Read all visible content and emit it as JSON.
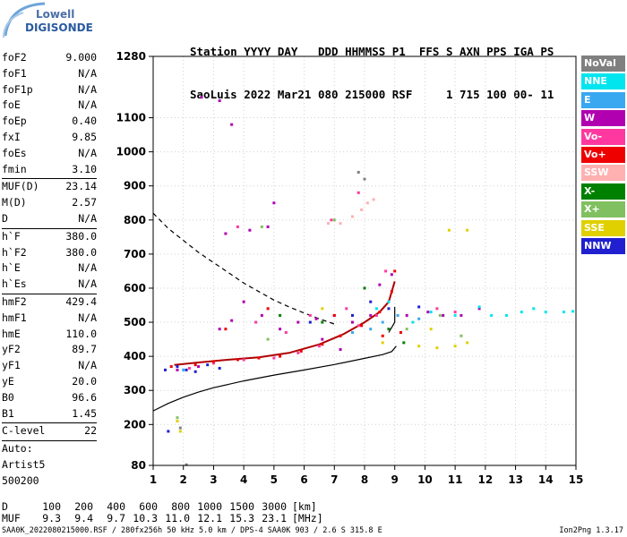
{
  "logo": {
    "line1": "Lowell",
    "line2": "DIGISONDE"
  },
  "header": {
    "line1": "Station YYYY DAY   DDD HHMMSS P1  FFS S AXN PPS IGA PS",
    "line2": "SaoLuis 2022 Mar21 080 215000 RSF     1 715 100 00- 11"
  },
  "params": [
    {
      "name": "foF2",
      "value": "9.000"
    },
    {
      "name": "foF1",
      "value": "N/A"
    },
    {
      "name": "foF1p",
      "value": "N/A"
    },
    {
      "name": "foE",
      "value": "N/A"
    },
    {
      "name": "foEp",
      "value": "0.40"
    },
    {
      "name": "fxI",
      "value": "9.85"
    },
    {
      "name": "foEs",
      "value": "N/A"
    },
    {
      "name": "fmin",
      "value": "3.10",
      "sep": true
    },
    {
      "name": "MUF(D)",
      "value": "23.14"
    },
    {
      "name": "M(D)",
      "value": "2.57"
    },
    {
      "name": "D",
      "value": "N/A",
      "sep": true
    },
    {
      "name": "h`F",
      "value": "380.0"
    },
    {
      "name": "h`F2",
      "value": "380.0"
    },
    {
      "name": "h`E",
      "value": "N/A"
    },
    {
      "name": "h`Es",
      "value": "N/A",
      "sep": true
    },
    {
      "name": "hmF2",
      "value": "429.4"
    },
    {
      "name": "hmF1",
      "value": "N/A"
    },
    {
      "name": "hmE",
      "value": "110.0"
    },
    {
      "name": "yF2",
      "value": "89.7"
    },
    {
      "name": "yF1",
      "value": "N/A"
    },
    {
      "name": "yE",
      "value": "20.0"
    },
    {
      "name": "B0",
      "value": "96.6"
    },
    {
      "name": "B1",
      "value": "1.45",
      "sep": true
    },
    {
      "name": "C-level",
      "value": "22",
      "sep": true
    }
  ],
  "autoscale": [
    "Auto:",
    "Artist5",
    "500200"
  ],
  "legend": [
    {
      "label": "NoVal",
      "color": "#808080"
    },
    {
      "label": "NNE",
      "color": "#00e5ee"
    },
    {
      "label": "E",
      "color": "#3aa8f0"
    },
    {
      "label": "W",
      "color": "#b000b0"
    },
    {
      "label": "Vo-",
      "color": "#ff38a0"
    },
    {
      "label": "Vo+",
      "color": "#ee0000"
    },
    {
      "label": "SSW",
      "color": "#ffb0b0"
    },
    {
      "label": "X-",
      "color": "#008000"
    },
    {
      "label": "X+",
      "color": "#80c060"
    },
    {
      "label": "SSE",
      "color": "#e0d000"
    },
    {
      "label": "NNW",
      "color": "#2020d0"
    }
  ],
  "dmuf": {
    "d_label": "D",
    "d_values": [
      "100",
      "200",
      "400",
      "600",
      "800",
      "1000",
      "1500",
      "3000"
    ],
    "d_unit": "[km]",
    "muf_label": "MUF",
    "muf_values": [
      "9.3",
      "9.4",
      "9.7",
      "10.3",
      "11.0",
      "12.1",
      "15.3",
      "23.1"
    ],
    "muf_unit": "[MHz]"
  },
  "footer": "SAA0K_2022080215000.RSF / 280fx256h 50 kHz 5.0 km / DPS-4 SAA0K 903 / 2.6 S 315.8 E",
  "version": "Ion2Png 1.3.17",
  "chart_data": {
    "type": "scatter",
    "x_range": [
      1,
      15
    ],
    "y_range": [
      80,
      1280
    ],
    "x_ticks": [
      1,
      2,
      3,
      4,
      5,
      6,
      7,
      8,
      9,
      10,
      11,
      12,
      13,
      14,
      15
    ],
    "y_ticks": [
      80,
      200,
      300,
      400,
      500,
      600,
      700,
      800,
      900,
      1000,
      1100,
      1280
    ],
    "grid": true,
    "legend_position": "right",
    "series": [
      {
        "name": "W",
        "color": "#b000b0",
        "points": [
          [
            1.8,
            360
          ],
          [
            2.5,
            370
          ],
          [
            3.2,
            480
          ],
          [
            3.6,
            505
          ],
          [
            4.0,
            560
          ],
          [
            4.6,
            520
          ],
          [
            5.2,
            480
          ],
          [
            5.8,
            500
          ],
          [
            6.4,
            510
          ],
          [
            7.0,
            520
          ],
          [
            7.6,
            500
          ],
          [
            8.2,
            520
          ],
          [
            3.4,
            760
          ],
          [
            4.2,
            770
          ],
          [
            4.8,
            780
          ],
          [
            2.6,
            1160
          ],
          [
            3.2,
            1150
          ],
          [
            3.6,
            1080
          ],
          [
            8.5,
            610
          ],
          [
            8.9,
            640
          ],
          [
            9.4,
            520
          ],
          [
            10.1,
            530
          ],
          [
            10.6,
            520
          ],
          [
            11.2,
            520
          ],
          [
            11.8,
            540
          ],
          [
            7.2,
            420
          ],
          [
            6.6,
            450
          ],
          [
            5.0,
            850
          ]
        ]
      },
      {
        "name": "Vo-",
        "color": "#ff38a0",
        "points": [
          [
            2.2,
            365
          ],
          [
            3.0,
            380
          ],
          [
            4.0,
            390
          ],
          [
            5.0,
            395
          ],
          [
            5.8,
            410
          ],
          [
            6.5,
            430
          ],
          [
            7.2,
            460
          ],
          [
            7.8,
            490
          ],
          [
            8.4,
            520
          ],
          [
            8.8,
            560
          ],
          [
            4.4,
            500
          ],
          [
            5.4,
            470
          ],
          [
            6.2,
            520
          ],
          [
            7.4,
            540
          ],
          [
            8.0,
            600
          ],
          [
            8.7,
            650
          ],
          [
            3.8,
            780
          ],
          [
            6.9,
            800
          ],
          [
            7.8,
            880
          ],
          [
            10.4,
            540
          ],
          [
            11.0,
            530
          ]
        ]
      },
      {
        "name": "Vo+",
        "color": "#ee0000",
        "points": [
          [
            1.6,
            370
          ],
          [
            2.4,
            375
          ],
          [
            3.0,
            385
          ],
          [
            3.8,
            390
          ],
          [
            4.5,
            395
          ],
          [
            5.2,
            400
          ],
          [
            5.9,
            415
          ],
          [
            6.6,
            435
          ],
          [
            7.2,
            460
          ],
          [
            7.9,
            490
          ],
          [
            8.5,
            530
          ],
          [
            8.9,
            590
          ],
          [
            9.0,
            650
          ],
          [
            3.4,
            480
          ],
          [
            4.8,
            540
          ],
          [
            7.0,
            520
          ],
          [
            8.6,
            460
          ],
          [
            9.2,
            470
          ]
        ]
      },
      {
        "name": "NNE",
        "color": "#00e5ee",
        "points": [
          [
            8.4,
            540
          ],
          [
            8.8,
            560
          ],
          [
            9.6,
            500
          ],
          [
            10.2,
            530
          ],
          [
            11.0,
            520
          ],
          [
            11.8,
            545
          ],
          [
            12.2,
            520
          ],
          [
            12.7,
            520
          ],
          [
            13.2,
            530
          ],
          [
            13.6,
            540
          ],
          [
            14.0,
            530
          ],
          [
            14.6,
            530
          ],
          [
            14.9,
            532
          ]
        ]
      },
      {
        "name": "E",
        "color": "#3aa8f0",
        "points": [
          [
            8.6,
            500
          ],
          [
            9.1,
            520
          ],
          [
            8.2,
            480
          ],
          [
            9.8,
            510
          ],
          [
            2.0,
            360
          ],
          [
            7.6,
            470
          ]
        ]
      },
      {
        "name": "SSW",
        "color": "#ffb0b0",
        "points": [
          [
            7.6,
            810
          ],
          [
            7.9,
            830
          ],
          [
            8.1,
            850
          ],
          [
            8.3,
            860
          ],
          [
            7.2,
            790
          ],
          [
            6.8,
            790
          ]
        ]
      },
      {
        "name": "X-",
        "color": "#008000",
        "points": [
          [
            5.2,
            520
          ],
          [
            6.6,
            500
          ],
          [
            8.0,
            600
          ],
          [
            8.8,
            480
          ],
          [
            9.3,
            440
          ]
        ]
      },
      {
        "name": "X+",
        "color": "#80c060",
        "points": [
          [
            4.6,
            780
          ],
          [
            7.0,
            800
          ],
          [
            9.4,
            480
          ],
          [
            10.5,
            520
          ],
          [
            11.2,
            460
          ],
          [
            1.8,
            220
          ],
          [
            4.8,
            450
          ]
        ]
      },
      {
        "name": "SSE",
        "color": "#e0d000",
        "points": [
          [
            9.8,
            430
          ],
          [
            10.4,
            425
          ],
          [
            11.0,
            430
          ],
          [
            11.4,
            440
          ],
          [
            10.8,
            770
          ],
          [
            11.4,
            770
          ],
          [
            1.8,
            210
          ],
          [
            1.9,
            180
          ],
          [
            6.6,
            540
          ],
          [
            8.6,
            440
          ],
          [
            10.2,
            480
          ]
        ]
      },
      {
        "name": "NNW",
        "color": "#2020d0",
        "points": [
          [
            1.4,
            360
          ],
          [
            1.8,
            370
          ],
          [
            2.1,
            360
          ],
          [
            2.4,
            355
          ],
          [
            2.8,
            375
          ],
          [
            3.2,
            365
          ],
          [
            6.2,
            500
          ],
          [
            7.6,
            520
          ],
          [
            8.2,
            560
          ],
          [
            8.8,
            540
          ],
          [
            9.8,
            545
          ],
          [
            1.5,
            180
          ]
        ]
      },
      {
        "name": "NoVal",
        "color": "#808080",
        "points": [
          [
            1.9,
            190
          ],
          [
            2.1,
            82
          ],
          [
            7.8,
            940
          ],
          [
            8.0,
            920
          ]
        ]
      }
    ],
    "curves": [
      {
        "style": "solid",
        "color": "#000000",
        "x": [
          1,
          1.5,
          2,
          2.5,
          3,
          4,
          5,
          6,
          7,
          8,
          8.6,
          8.9,
          9.05
        ],
        "y": [
          240,
          262,
          280,
          295,
          308,
          328,
          345,
          360,
          376,
          394,
          405,
          414,
          430
        ]
      },
      {
        "style": "dashed",
        "color": "#000000",
        "x": [
          1,
          1.5,
          2,
          2.5,
          3,
          3.5,
          4,
          4.5,
          5,
          5.5,
          6,
          6.5,
          7
        ],
        "y": [
          820,
          775,
          740,
          705,
          675,
          645,
          615,
          590,
          565,
          545,
          527,
          510,
          495
        ]
      },
      {
        "style": "solid",
        "color": "#b00000",
        "x": [
          1.7,
          2.5,
          3.5,
          4.5,
          5.5,
          6.5,
          7.3,
          8.0,
          8.5,
          8.8,
          9.0
        ],
        "y": [
          375,
          382,
          390,
          397,
          410,
          435,
          465,
          500,
          530,
          560,
          620
        ]
      },
      {
        "style": "solid",
        "color": "#000000",
        "x": [
          8.8,
          9.0,
          9.0
        ],
        "y": [
          470,
          500,
          545
        ]
      }
    ]
  }
}
